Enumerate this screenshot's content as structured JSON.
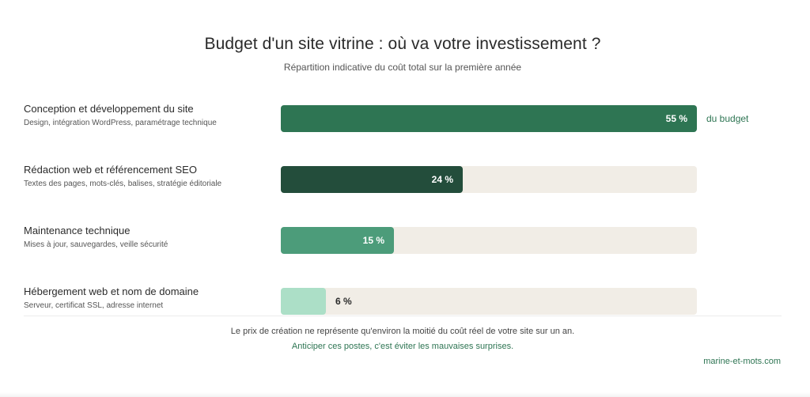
{
  "chart_data": {
    "type": "bar",
    "title": "Budget d'un site vitrine : où va votre investissement ?",
    "subtitle": "Répartition indicative du coût total sur la première année",
    "value_suffix": "du budget",
    "categories": [
      "Conception et développement du site",
      "Rédaction web et référencement SEO",
      "Maintenance technique",
      "Hébergement web et nom de domaine"
    ],
    "descriptions": [
      "Design, intégration WordPress, paramétrage technique",
      "Textes des pages, mots-clés, balises, stratégie éditoriale",
      "Mises à jour, sauvegardes, veille sécurité",
      "Serveur, certificat SSL, adresse internet"
    ],
    "values": [
      55,
      24,
      15,
      6
    ],
    "value_labels": [
      "55 %",
      "24 %",
      "15 %",
      "6 %"
    ],
    "colors": [
      "#2e7553",
      "#234d3b",
      "#4c9c7a",
      "#acdfc7"
    ],
    "track_color": "#f1ede6",
    "xlim": [
      0,
      55
    ]
  },
  "footer": {
    "note": "Le prix de création ne représente qu'environ la moitié du coût réel de votre site sur un an.",
    "cta": "Anticiper ces postes, c'est éviter les mauvaises surprises.",
    "brand": "marine-et-mots.com"
  }
}
